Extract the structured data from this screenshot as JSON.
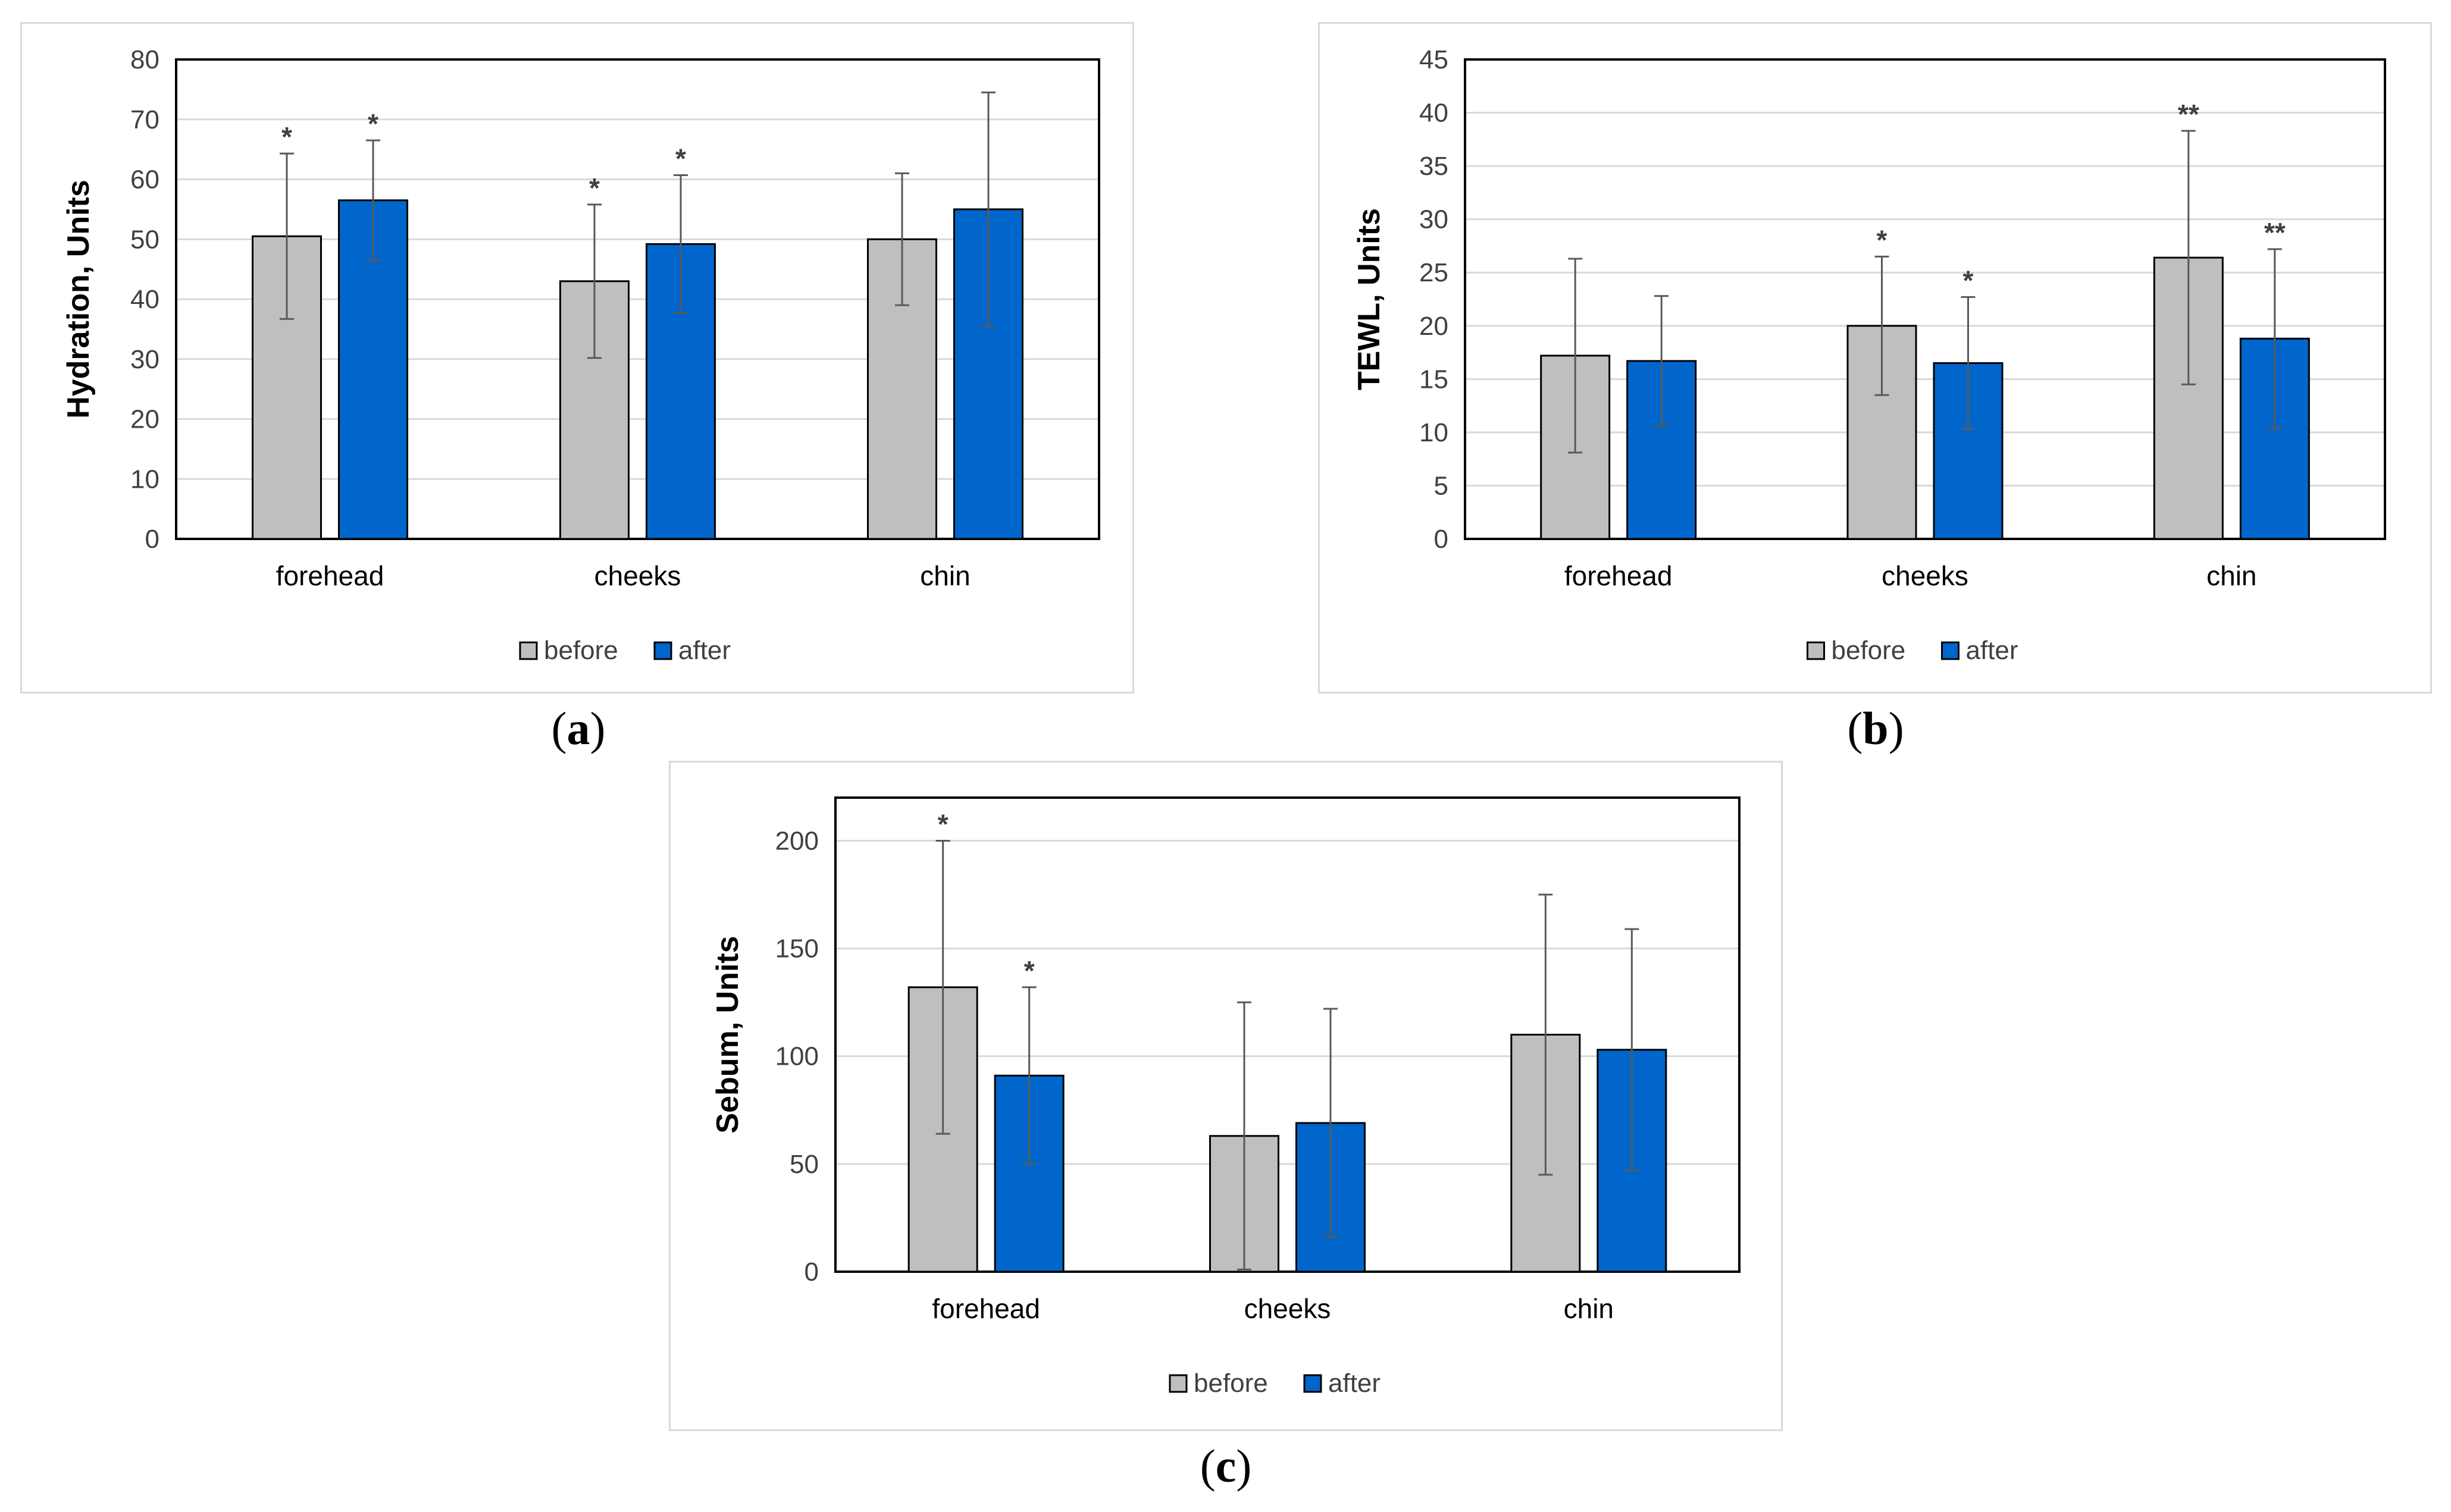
{
  "chart_data": [
    {
      "type": "bar",
      "panel": "a",
      "caption": "a",
      "title": "",
      "xlabel": "",
      "ylabel": "Hydration, Units",
      "ylim": [
        0,
        80
      ],
      "yticks": [
        0,
        10,
        20,
        30,
        40,
        50,
        60,
        70,
        80
      ],
      "categories": [
        "forehead",
        "cheeks",
        "chin"
      ],
      "series": [
        {
          "name": "before",
          "color": "#BFBFBF",
          "values": [
            50.5,
            43,
            50
          ],
          "errors": [
            13.8,
            12.8,
            11
          ],
          "annotations": [
            "*",
            "*",
            ""
          ]
        },
        {
          "name": "after",
          "color": "#0066CC",
          "values": [
            56.5,
            49.2,
            55
          ],
          "errors": [
            10,
            11.5,
            19.5
          ],
          "annotations": [
            "*",
            "*",
            ""
          ]
        }
      ],
      "legend": "bottom"
    },
    {
      "type": "bar",
      "panel": "b",
      "caption": "b",
      "title": "",
      "xlabel": "",
      "ylabel": "TEWL, Units",
      "ylim": [
        0,
        45
      ],
      "yticks": [
        0,
        5,
        10,
        15,
        20,
        25,
        30,
        35,
        40,
        45
      ],
      "categories": [
        "forehead",
        "cheeks",
        "chin"
      ],
      "series": [
        {
          "name": "before",
          "color": "#BFBFBF",
          "values": [
            17.2,
            20,
            26.4
          ],
          "errors": [
            9.1,
            6.5,
            11.9
          ],
          "annotations": [
            "",
            "*",
            "**"
          ]
        },
        {
          "name": "after",
          "color": "#0066CC",
          "values": [
            16.7,
            16.5,
            18.8
          ],
          "errors": [
            6.1,
            6.2,
            8.4
          ],
          "annotations": [
            "",
            "*",
            "**"
          ]
        }
      ],
      "legend": "bottom"
    },
    {
      "type": "bar",
      "panel": "c",
      "caption": "c",
      "title": "",
      "xlabel": "",
      "ylabel": "Sebum, Units",
      "ylim": [
        0,
        220
      ],
      "yticks": [
        0,
        50,
        100,
        150,
        200
      ],
      "categories": [
        "forehead",
        "cheeks",
        "chin"
      ],
      "series": [
        {
          "name": "before",
          "color": "#BFBFBF",
          "values": [
            132,
            63,
            110
          ],
          "errors": [
            68,
            62,
            65
          ],
          "annotations": [
            "*",
            "",
            ""
          ]
        },
        {
          "name": "after",
          "color": "#0066CC",
          "values": [
            91,
            69,
            103
          ],
          "errors": [
            41,
            53,
            56
          ],
          "annotations": [
            "*",
            "",
            ""
          ]
        }
      ],
      "legend": "bottom"
    }
  ]
}
